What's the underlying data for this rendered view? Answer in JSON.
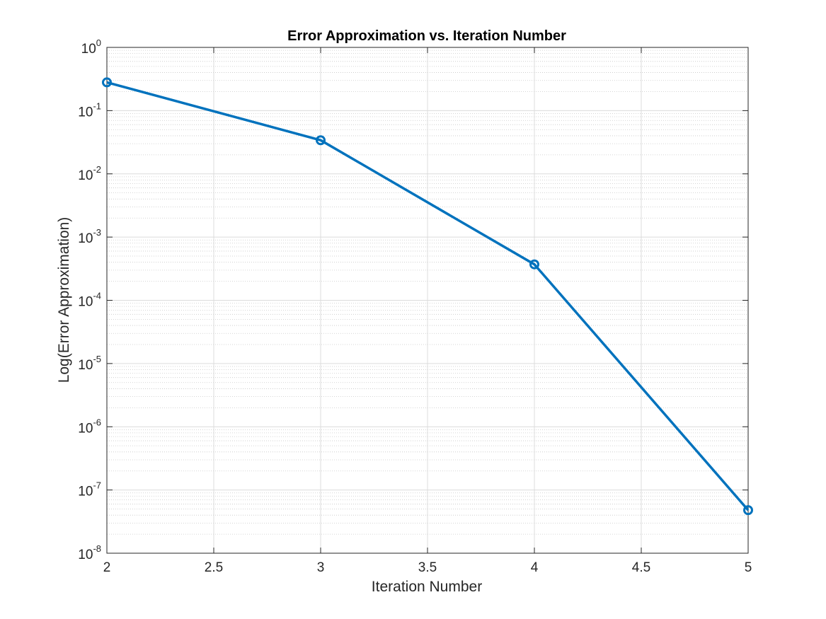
{
  "chart_data": {
    "type": "line",
    "title": "Error Approximation vs. Iteration Number",
    "xlabel": "Iteration Number",
    "ylabel": "Log(Error Approximation)",
    "yscale": "log",
    "xlim": [
      2,
      5
    ],
    "ylim": [
      1e-08,
      1
    ],
    "grid": true,
    "minor_grid": true,
    "x_ticks": [
      2,
      2.5,
      3,
      3.5,
      4,
      4.5,
      5
    ],
    "x_tick_labels": [
      "2",
      "2.5",
      "3",
      "3.5",
      "4",
      "4.5",
      "5"
    ],
    "y_tick_exponents": [
      0,
      -1,
      -2,
      -3,
      -4,
      -5,
      -6,
      -7,
      -8
    ],
    "y_tick_labels": [
      {
        "base": "10",
        "exp": "0"
      },
      {
        "base": "10",
        "exp": "-1"
      },
      {
        "base": "10",
        "exp": "-2"
      },
      {
        "base": "10",
        "exp": "-3"
      },
      {
        "base": "10",
        "exp": "-4"
      },
      {
        "base": "10",
        "exp": "-5"
      },
      {
        "base": "10",
        "exp": "-6"
      },
      {
        "base": "10",
        "exp": "-7"
      },
      {
        "base": "10",
        "exp": "-8"
      }
    ],
    "series": [
      {
        "x": [
          2,
          3,
          4,
          5
        ],
        "y": [
          0.28,
          0.034,
          0.00037,
          4.8e-08
        ],
        "color": "#0072BD",
        "marker": "circle"
      }
    ]
  }
}
